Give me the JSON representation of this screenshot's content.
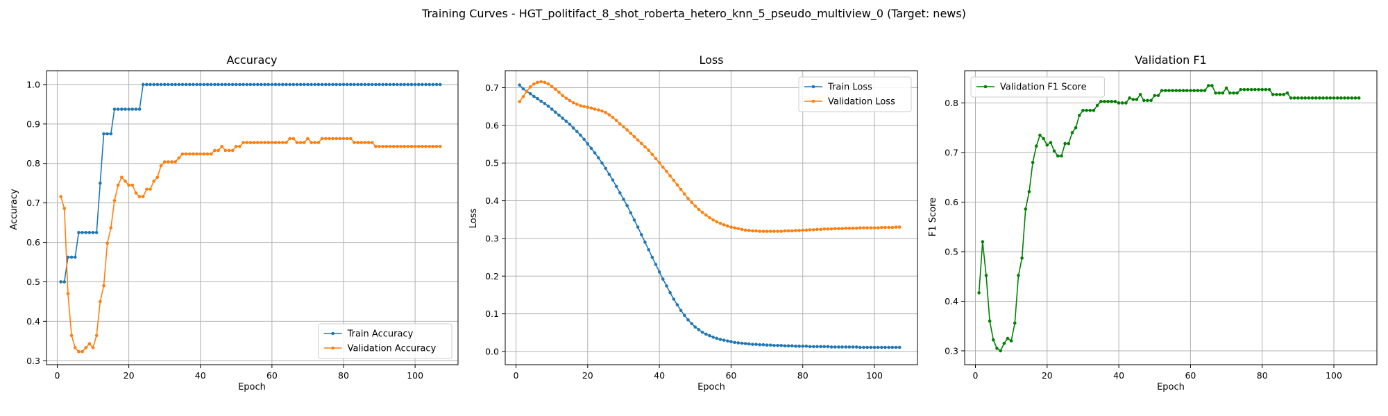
{
  "figure": {
    "title": "Training Curves - HGT_politifact_8_shot_roberta_hetero_knn_5_pseudo_multiview_0 (Target: news)"
  },
  "colors": {
    "train": "#1f77b4",
    "validation": "#ff7f0e",
    "f1": "#008000",
    "grid": "#b0b0b0"
  },
  "chart_data": [
    {
      "type": "line",
      "title": "Accuracy",
      "xlabel": "Epoch",
      "ylabel": "Accuracy",
      "xlim": [
        -3,
        112
      ],
      "ylim": [
        0.29,
        1.035
      ],
      "xticks": [
        0,
        20,
        40,
        60,
        80,
        100
      ],
      "yticks": [
        0.3,
        0.4,
        0.5,
        0.6,
        0.7,
        0.8,
        0.9,
        1.0
      ],
      "ytick_labels": [
        "0.3",
        "0.4",
        "0.5",
        "0.6",
        "0.7",
        "0.8",
        "0.9",
        "1.0"
      ],
      "grid": true,
      "legend": "lower right",
      "series": [
        {
          "name": "Train Accuracy",
          "color": "#1f77b4",
          "x_start": 1,
          "values": [
            0.5,
            0.5,
            0.5625,
            0.5625,
            0.5625,
            0.625,
            0.625,
            0.625,
            0.625,
            0.625,
            0.625,
            0.75,
            0.875,
            0.875,
            0.875,
            0.9375,
            0.9375,
            0.9375,
            0.9375,
            0.9375,
            0.9375,
            0.9375,
            0.9375,
            1,
            1,
            1,
            1,
            1,
            1,
            1,
            1,
            1,
            1,
            1,
            1,
            1,
            1,
            1,
            1,
            1,
            1,
            1,
            1,
            1,
            1,
            1,
            1,
            1,
            1,
            1,
            1,
            1,
            1,
            1,
            1,
            1,
            1,
            1,
            1,
            1,
            1,
            1,
            1,
            1,
            1,
            1,
            1,
            1,
            1,
            1,
            1,
            1,
            1,
            1,
            1,
            1,
            1,
            1,
            1,
            1,
            1,
            1,
            1,
            1,
            1,
            1,
            1,
            1,
            1,
            1,
            1,
            1,
            1,
            1,
            1,
            1,
            1,
            1,
            1,
            1,
            1,
            1,
            1,
            1,
            1,
            1,
            1
          ]
        },
        {
          "name": "Validation Accuracy",
          "color": "#ff7f0e",
          "x_start": 1,
          "values": [
            0.716,
            0.686,
            0.47,
            0.364,
            0.333,
            0.323,
            0.323,
            0.333,
            0.343,
            0.333,
            0.364,
            0.45,
            0.49,
            0.598,
            0.637,
            0.706,
            0.745,
            0.765,
            0.755,
            0.745,
            0.745,
            0.725,
            0.716,
            0.716,
            0.735,
            0.735,
            0.755,
            0.765,
            0.794,
            0.804,
            0.804,
            0.804,
            0.804,
            0.814,
            0.824,
            0.824,
            0.824,
            0.824,
            0.824,
            0.824,
            0.824,
            0.824,
            0.824,
            0.833,
            0.833,
            0.843,
            0.833,
            0.833,
            0.833,
            0.843,
            0.843,
            0.853,
            0.853,
            0.853,
            0.853,
            0.853,
            0.853,
            0.853,
            0.853,
            0.853,
            0.853,
            0.853,
            0.853,
            0.853,
            0.863,
            0.863,
            0.853,
            0.853,
            0.853,
            0.863,
            0.853,
            0.853,
            0.853,
            0.863,
            0.863,
            0.863,
            0.863,
            0.863,
            0.863,
            0.863,
            0.863,
            0.863,
            0.853,
            0.853,
            0.853,
            0.853,
            0.853,
            0.853,
            0.843,
            0.843,
            0.843,
            0.843,
            0.843,
            0.843,
            0.843,
            0.843,
            0.843,
            0.843,
            0.843,
            0.843,
            0.843,
            0.843,
            0.843,
            0.843,
            0.843,
            0.843,
            0.843
          ]
        }
      ]
    },
    {
      "type": "line",
      "title": "Loss",
      "xlabel": "Epoch",
      "ylabel": "Loss",
      "xlim": [
        -3,
        112
      ],
      "ylim": [
        -0.035,
        0.745
      ],
      "xticks": [
        0,
        20,
        40,
        60,
        80,
        100
      ],
      "yticks": [
        0.0,
        0.1,
        0.2,
        0.3,
        0.4,
        0.5,
        0.6,
        0.7
      ],
      "ytick_labels": [
        "0.0",
        "0.1",
        "0.2",
        "0.3",
        "0.4",
        "0.5",
        "0.6",
        "0.7"
      ],
      "grid": true,
      "legend": "upper right",
      "series": [
        {
          "name": "Train Loss",
          "color": "#1f77b4",
          "x_start": 1,
          "values": [
            0.707,
            0.697,
            0.69,
            0.684,
            0.677,
            0.671,
            0.664,
            0.658,
            0.651,
            0.643,
            0.635,
            0.627,
            0.619,
            0.611,
            0.603,
            0.593,
            0.584,
            0.574,
            0.563,
            0.551,
            0.539,
            0.527,
            0.514,
            0.5,
            0.486,
            0.47,
            0.455,
            0.438,
            0.421,
            0.404,
            0.387,
            0.368,
            0.349,
            0.33,
            0.31,
            0.29,
            0.27,
            0.25,
            0.231,
            0.211,
            0.192,
            0.174,
            0.156,
            0.139,
            0.124,
            0.109,
            0.096,
            0.084,
            0.074,
            0.065,
            0.058,
            0.051,
            0.046,
            0.042,
            0.038,
            0.035,
            0.032,
            0.03,
            0.028,
            0.026,
            0.024,
            0.023,
            0.022,
            0.021,
            0.02,
            0.019,
            0.019,
            0.018,
            0.018,
            0.017,
            0.017,
            0.016,
            0.016,
            0.016,
            0.015,
            0.015,
            0.015,
            0.014,
            0.014,
            0.014,
            0.014,
            0.013,
            0.013,
            0.013,
            0.013,
            0.013,
            0.013,
            0.012,
            0.012,
            0.012,
            0.012,
            0.012,
            0.012,
            0.012,
            0.012,
            0.011,
            0.011,
            0.011,
            0.011,
            0.011,
            0.011,
            0.011,
            0.011,
            0.011,
            0.011,
            0.011,
            0.011
          ]
        },
        {
          "name": "Validation Loss",
          "color": "#ff7f0e",
          "x_start": 1,
          "values": [
            0.663,
            0.676,
            0.69,
            0.702,
            0.71,
            0.714,
            0.716,
            0.714,
            0.71,
            0.703,
            0.696,
            0.688,
            0.679,
            0.672,
            0.666,
            0.66,
            0.656,
            0.652,
            0.65,
            0.648,
            0.646,
            0.643,
            0.641,
            0.638,
            0.634,
            0.628,
            0.621,
            0.613,
            0.604,
            0.596,
            0.588,
            0.579,
            0.57,
            0.561,
            0.552,
            0.543,
            0.534,
            0.523,
            0.512,
            0.501,
            0.489,
            0.478,
            0.466,
            0.454,
            0.442,
            0.43,
            0.418,
            0.406,
            0.396,
            0.386,
            0.377,
            0.369,
            0.362,
            0.355,
            0.349,
            0.344,
            0.34,
            0.336,
            0.333,
            0.33,
            0.328,
            0.326,
            0.324,
            0.322,
            0.321,
            0.32,
            0.32,
            0.319,
            0.319,
            0.319,
            0.319,
            0.319,
            0.319,
            0.319,
            0.32,
            0.32,
            0.32,
            0.321,
            0.321,
            0.322,
            0.322,
            0.323,
            0.323,
            0.324,
            0.324,
            0.325,
            0.325,
            0.325,
            0.326,
            0.326,
            0.326,
            0.327,
            0.327,
            0.327,
            0.327,
            0.328,
            0.328,
            0.328,
            0.328,
            0.328,
            0.328,
            0.329,
            0.329,
            0.329,
            0.329,
            0.33,
            0.33
          ]
        }
      ]
    },
    {
      "type": "line",
      "title": "Validation F1",
      "xlabel": "Epoch",
      "ylabel": "F1 Score",
      "xlim": [
        -3,
        112
      ],
      "ylim": [
        0.272,
        0.865
      ],
      "xticks": [
        0,
        20,
        40,
        60,
        80,
        100
      ],
      "yticks": [
        0.3,
        0.4,
        0.5,
        0.6,
        0.7,
        0.8
      ],
      "ytick_labels": [
        "0.3",
        "0.4",
        "0.5",
        "0.6",
        "0.7",
        "0.8"
      ],
      "grid": true,
      "legend": "upper left",
      "series": [
        {
          "name": "Validation F1 Score",
          "color": "#008000",
          "x_start": 1,
          "values": [
            0.417,
            0.52,
            0.452,
            0.36,
            0.322,
            0.305,
            0.3,
            0.315,
            0.325,
            0.32,
            0.356,
            0.452,
            0.487,
            0.586,
            0.621,
            0.68,
            0.713,
            0.735,
            0.728,
            0.715,
            0.72,
            0.703,
            0.693,
            0.693,
            0.718,
            0.718,
            0.74,
            0.75,
            0.775,
            0.785,
            0.785,
            0.785,
            0.785,
            0.795,
            0.803,
            0.803,
            0.803,
            0.803,
            0.803,
            0.8,
            0.8,
            0.8,
            0.81,
            0.807,
            0.807,
            0.817,
            0.805,
            0.805,
            0.805,
            0.815,
            0.815,
            0.825,
            0.825,
            0.825,
            0.825,
            0.825,
            0.825,
            0.825,
            0.825,
            0.825,
            0.825,
            0.825,
            0.825,
            0.825,
            0.835,
            0.835,
            0.82,
            0.82,
            0.82,
            0.83,
            0.82,
            0.82,
            0.82,
            0.827,
            0.827,
            0.827,
            0.827,
            0.827,
            0.827,
            0.827,
            0.827,
            0.827,
            0.817,
            0.817,
            0.817,
            0.817,
            0.82,
            0.81,
            0.81,
            0.81,
            0.81,
            0.81,
            0.81,
            0.81,
            0.81,
            0.81,
            0.81,
            0.81,
            0.81,
            0.81,
            0.81,
            0.81,
            0.81,
            0.81,
            0.81,
            0.81,
            0.81
          ]
        }
      ]
    }
  ]
}
